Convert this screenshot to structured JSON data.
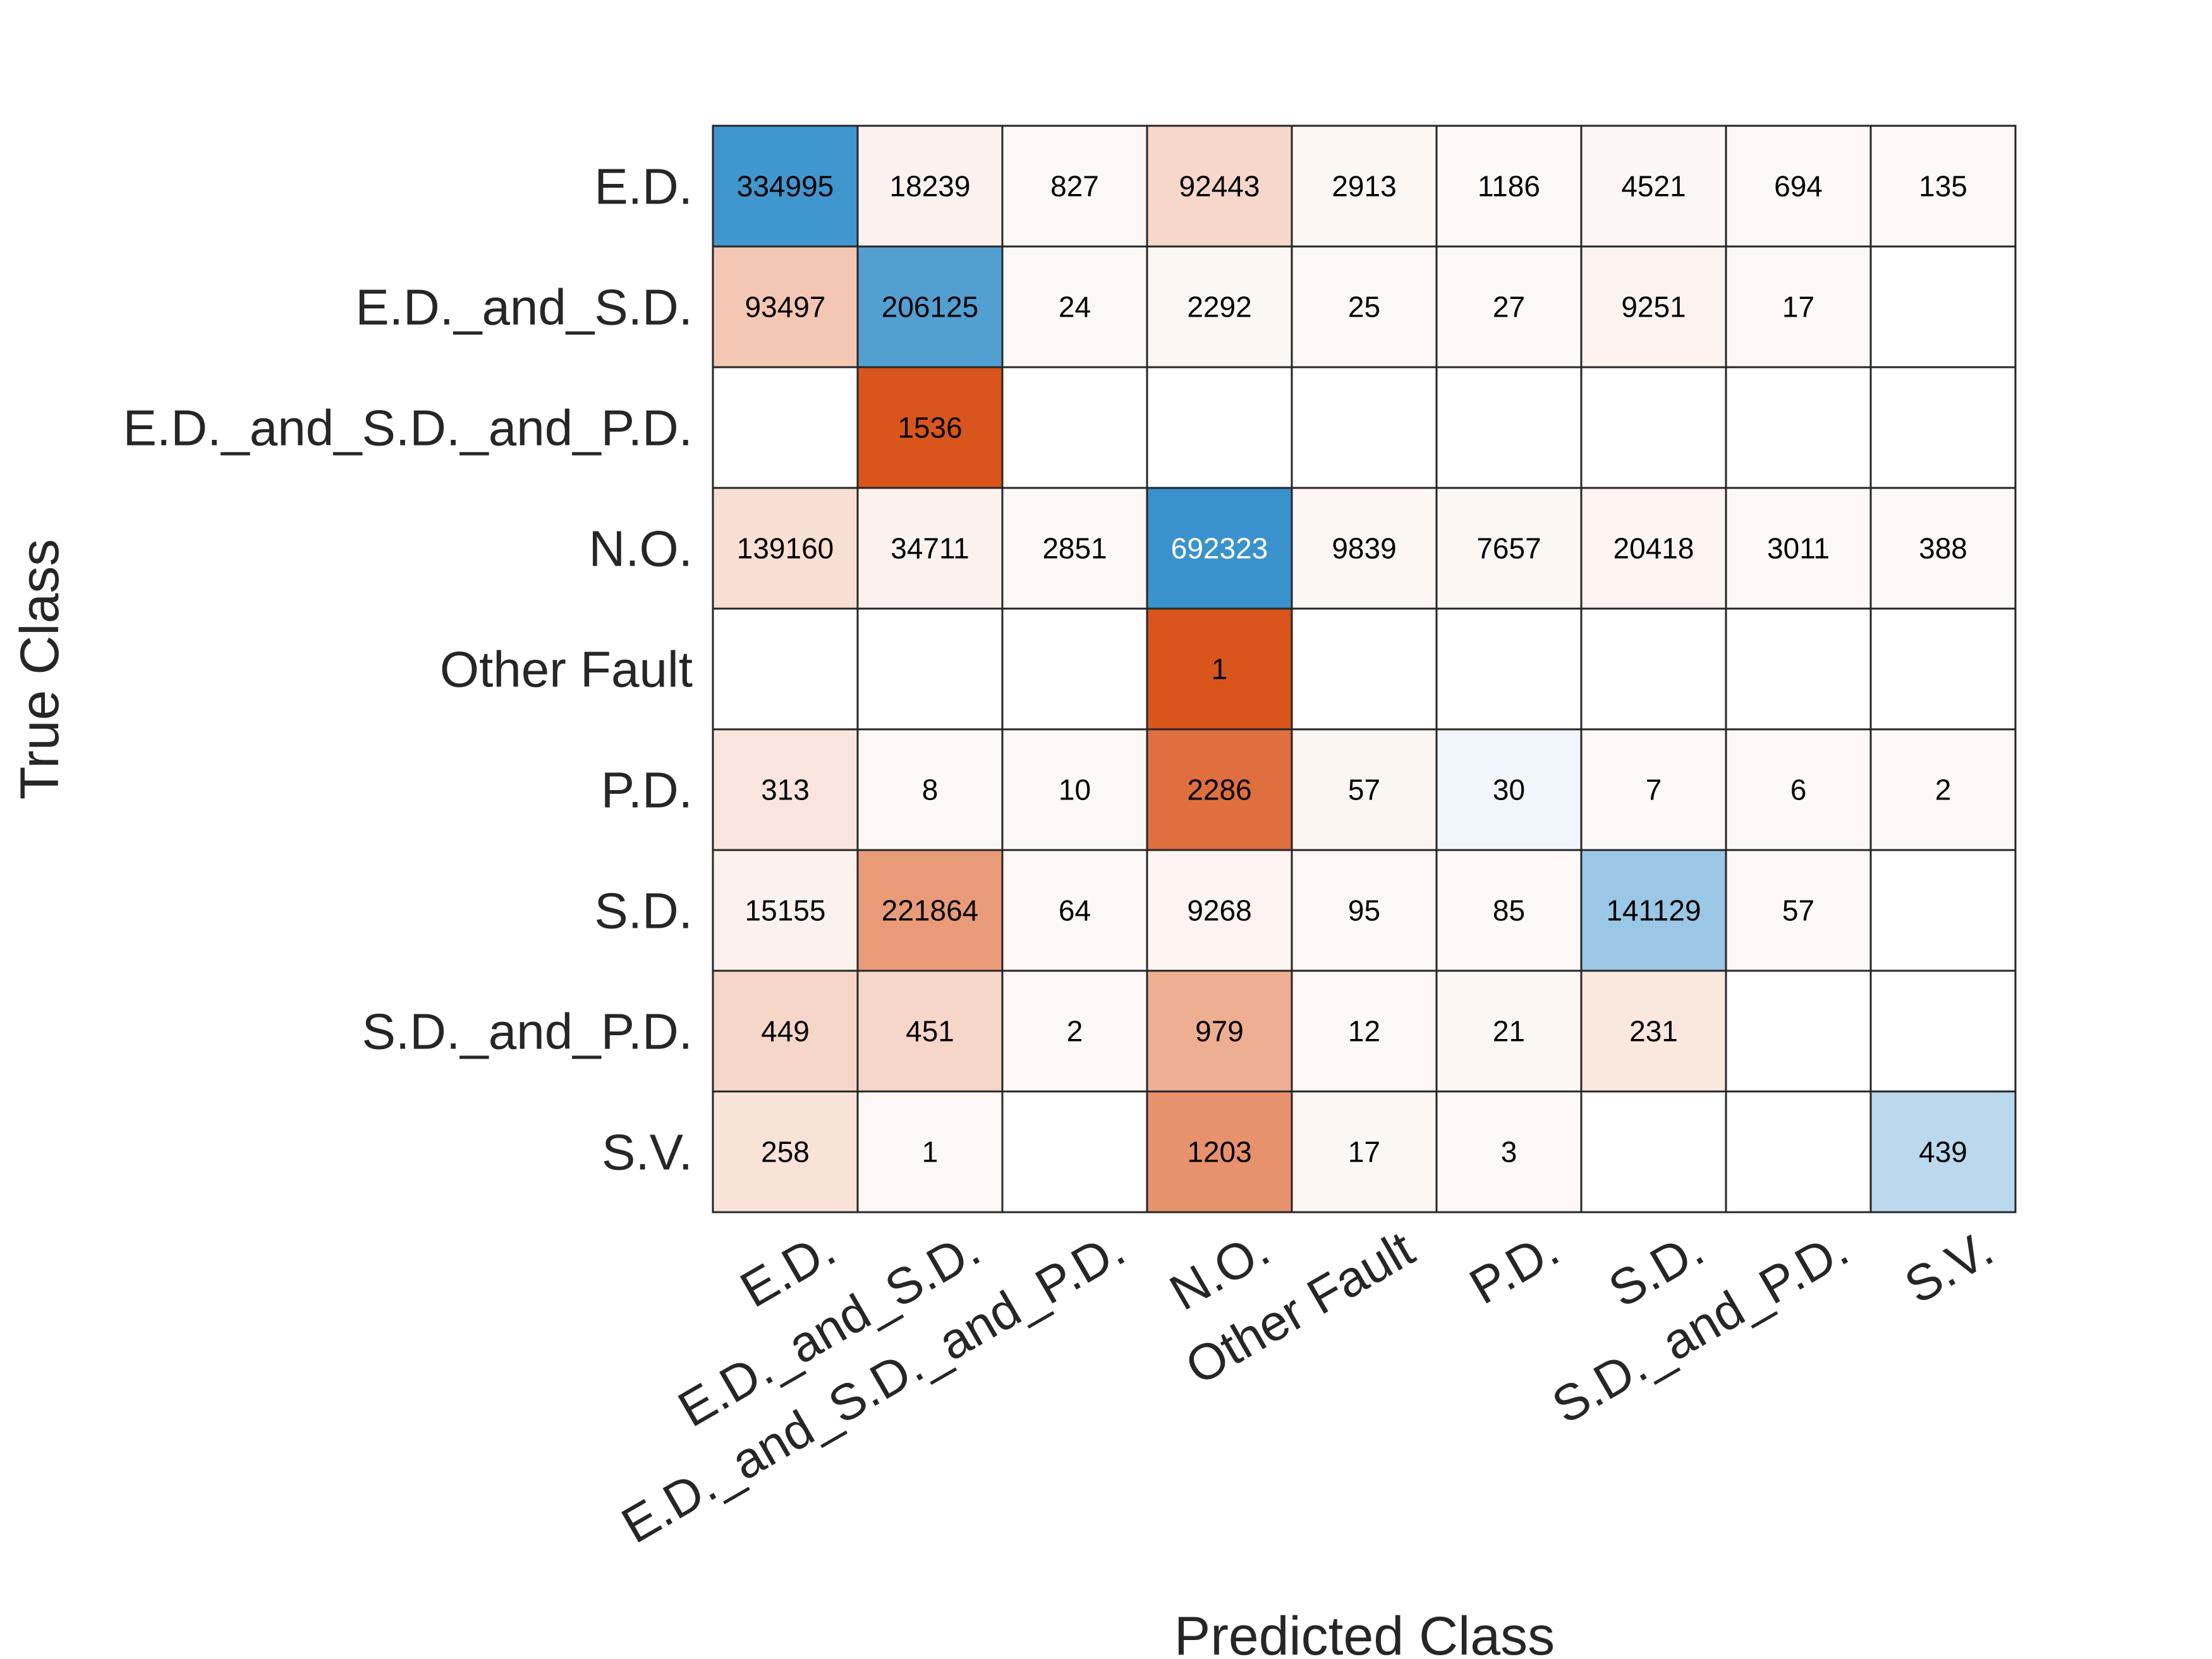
{
  "chart_data": {
    "type": "heatmap",
    "title": "",
    "xlabel": "Predicted Class",
    "ylabel": "True Class",
    "classes": [
      "E.D.",
      "E.D._and_S.D.",
      "E.D._and_S.D._and_P.D.",
      "N.O.",
      "Other Fault",
      "P.D.",
      "S.D.",
      "S.D._and_P.D.",
      "S.V."
    ],
    "matrix": [
      [
        334995,
        18239,
        827,
        92443,
        2913,
        1186,
        4521,
        694,
        135
      ],
      [
        93497,
        206125,
        24,
        2292,
        25,
        27,
        9251,
        17,
        null
      ],
      [
        null,
        1536,
        null,
        null,
        null,
        null,
        null,
        null,
        null
      ],
      [
        139160,
        34711,
        2851,
        692323,
        9839,
        7657,
        20418,
        3011,
        388
      ],
      [
        null,
        null,
        null,
        1,
        null,
        null,
        null,
        null,
        null
      ],
      [
        313,
        8,
        10,
        2286,
        57,
        30,
        7,
        6,
        2
      ],
      [
        15155,
        221864,
        64,
        9268,
        95,
        85,
        141129,
        57,
        null
      ],
      [
        449,
        451,
        2,
        979,
        12,
        21,
        231,
        null,
        null
      ],
      [
        258,
        1,
        null,
        1203,
        17,
        3,
        null,
        null,
        439
      ]
    ],
    "colors": {
      "diagonal": "#0072bd",
      "off_diagonal": "#d95319",
      "empty": "#ffffff",
      "grid": "#262626"
    }
  }
}
